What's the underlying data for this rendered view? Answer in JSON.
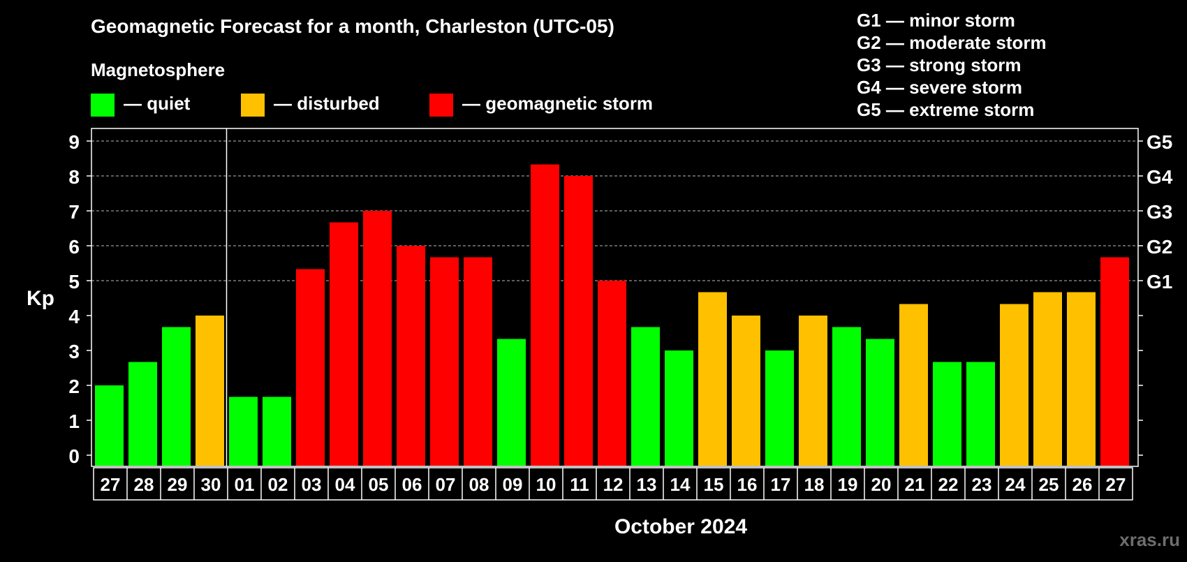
{
  "chart_data": {
    "type": "bar",
    "title": "Geomagnetic Forecast for a month, Charleston (UTC-05)",
    "subtitle": "Magnetosphere",
    "xlabel": "October 2024",
    "ylabel": "Kp",
    "ylim": [
      0,
      9
    ],
    "y_ticks": [
      "0",
      "1",
      "2",
      "3",
      "4",
      "5",
      "6",
      "7",
      "8",
      "9"
    ],
    "right_axis_labels": [
      {
        "label": "G1",
        "kp": 5
      },
      {
        "label": "G2",
        "kp": 6
      },
      {
        "label": "G3",
        "kp": 7
      },
      {
        "label": "G4",
        "kp": 8
      },
      {
        "label": "G5",
        "kp": 9
      }
    ],
    "grid": "dashed horizontal at each integer Kp from 5 to 9",
    "month_separator_after_index": 3,
    "categories": [
      "27",
      "28",
      "29",
      "30",
      "01",
      "02",
      "03",
      "04",
      "05",
      "06",
      "07",
      "08",
      "09",
      "10",
      "11",
      "12",
      "13",
      "14",
      "15",
      "16",
      "17",
      "18",
      "19",
      "20",
      "21",
      "22",
      "23",
      "24",
      "25",
      "26",
      "27"
    ],
    "values": [
      2.0,
      2.67,
      3.67,
      4.0,
      1.67,
      1.67,
      5.33,
      6.67,
      7.0,
      6.0,
      5.67,
      5.67,
      3.33,
      8.33,
      8.0,
      5.0,
      3.67,
      3.0,
      4.67,
      4.0,
      3.0,
      4.0,
      3.67,
      3.33,
      4.33,
      2.67,
      2.67,
      4.33,
      4.67,
      4.67,
      5.67
    ],
    "levels": [
      "quiet",
      "quiet",
      "quiet",
      "disturbed",
      "quiet",
      "quiet",
      "storm",
      "storm",
      "storm",
      "storm",
      "storm",
      "storm",
      "quiet",
      "storm",
      "storm",
      "storm",
      "quiet",
      "quiet",
      "disturbed",
      "disturbed",
      "quiet",
      "disturbed",
      "quiet",
      "quiet",
      "disturbed",
      "quiet",
      "quiet",
      "disturbed",
      "disturbed",
      "disturbed",
      "storm"
    ],
    "legend": [
      {
        "key": "quiet",
        "label": "— quiet",
        "color": "#00ff00"
      },
      {
        "key": "disturbed",
        "label": "— disturbed",
        "color": "#ffc000"
      },
      {
        "key": "storm",
        "label": "— geomagnetic storm",
        "color": "#ff0000"
      }
    ],
    "storm_scale": [
      "G1 — minor storm",
      "G2 — moderate storm",
      "G3 — strong storm",
      "G4 — severe storm",
      "G5 — extreme storm"
    ]
  },
  "watermark": "xras.ru",
  "colors": {
    "background": "#000000",
    "foreground": "#ffffff",
    "grid": "#bbbbbb"
  }
}
